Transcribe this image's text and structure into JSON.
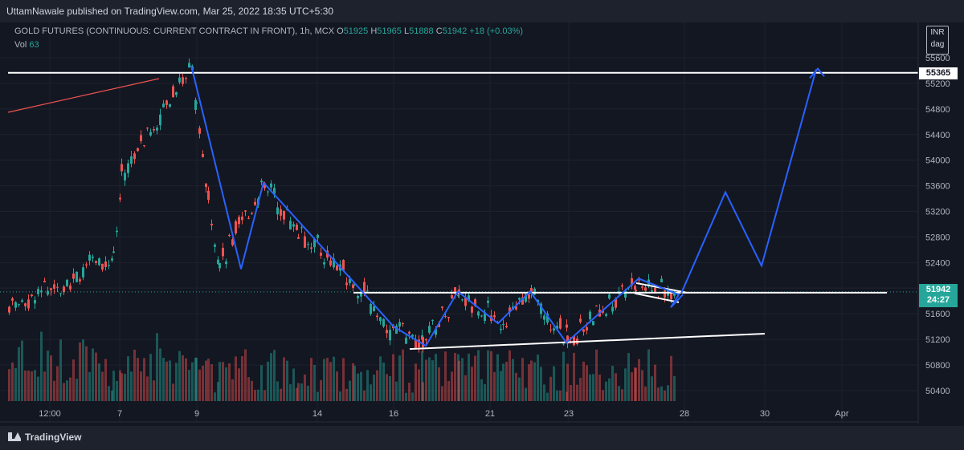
{
  "publisher": "UttamNawale published on TradingView.com, Mar 25, 2022 18:35 UTC+5:30",
  "symbol": {
    "name": "GOLD FUTURES (CONTINUOUS: CURRENT CONTRACT IN FRONT), 1h, MCX",
    "open": "51925",
    "high": "51965",
    "low": "51888",
    "close": "51942",
    "change": "+18 (+0.03%)"
  },
  "volume": {
    "label": "Vol",
    "value": "63"
  },
  "currency": {
    "unit": "INR",
    "mode": "dag"
  },
  "footer_brand": "TradingView",
  "colors": {
    "up": "#26a69a",
    "down": "#ef5350",
    "pattern": "#2962ff",
    "trend": "#ffffff",
    "background": "#131722"
  },
  "chart_data": {
    "type": "candlestick",
    "y_axis": {
      "ticks": [
        50400,
        50800,
        51200,
        51600,
        52000,
        52400,
        52800,
        53200,
        53600,
        54000,
        54400,
        54800,
        55200,
        55600
      ],
      "range": [
        50200,
        55750
      ],
      "position": "right"
    },
    "x_axis": {
      "tick_labels": [
        "12:00",
        "7",
        "9",
        "14",
        "16",
        "21",
        "23",
        "28",
        "30",
        "Apr"
      ]
    },
    "price_labels": {
      "level": "55365",
      "last": "51942",
      "countdown": "24:27"
    },
    "horizontal_levels": [
      55365,
      51942
    ],
    "price_path": [
      [
        "12:00",
        51700
      ],
      [
        "7",
        52500
      ],
      [
        "7",
        53750
      ],
      [
        "9",
        55550
      ],
      [
        "9",
        54700
      ],
      [
        "9",
        53500
      ],
      [
        "9",
        52400
      ],
      [
        "14",
        53650
      ],
      [
        "14",
        52900
      ],
      [
        "14",
        52100
      ],
      [
        "16",
        51400
      ],
      [
        "16",
        51150
      ],
      [
        "21",
        51900
      ],
      [
        "21",
        51500
      ],
      [
        "23",
        51900
      ],
      [
        "23",
        51200
      ],
      [
        "28",
        52100
      ],
      [
        "28",
        51850
      ]
    ],
    "projection_path": [
      [
        "28",
        51900
      ],
      [
        "28",
        53500
      ],
      [
        "30",
        52350
      ],
      [
        "Apr",
        55365
      ]
    ],
    "support_line": {
      "from": [
        "16",
        51050
      ],
      "to": [
        "30",
        51300
      ]
    },
    "upper_level_line": {
      "from": [
        "16",
        51940
      ],
      "to": [
        "Apr",
        51940
      ]
    },
    "grid": true,
    "legend": "top-left"
  }
}
